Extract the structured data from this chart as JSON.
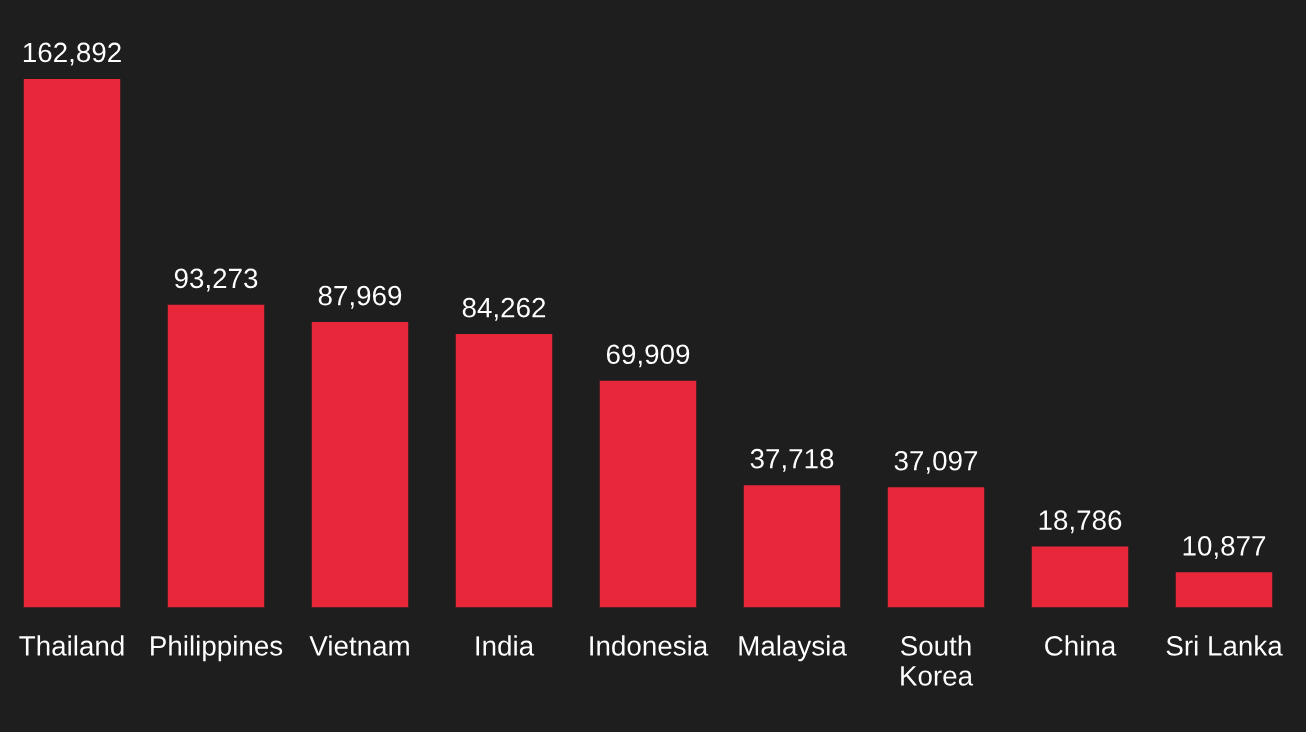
{
  "chart_data": {
    "type": "bar",
    "categories": [
      "Thailand",
      "Philippines",
      "Vietnam",
      "India",
      "Indonesia",
      "Malaysia",
      "South Korea",
      "China",
      "Sri Lanka"
    ],
    "values": [
      162892,
      93273,
      87969,
      84262,
      69909,
      37718,
      37097,
      18786,
      10877
    ],
    "color": "#e8283a",
    "value_labels": [
      "162,892",
      "93,273",
      "87,969",
      "84,262",
      "69,909",
      "37,718",
      "37,097",
      "18,786",
      "10,877"
    ],
    "grid": false,
    "legend": false
  }
}
